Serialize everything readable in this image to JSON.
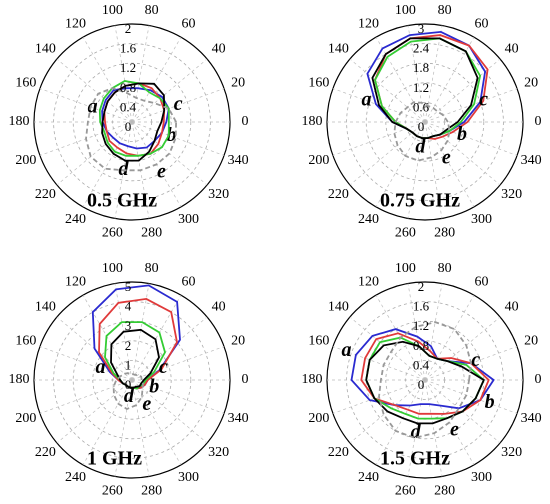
{
  "chart_data": [
    {
      "type": "polar",
      "title": "0.5 GHz",
      "theta": [
        0,
        20,
        40,
        60,
        80,
        100,
        120,
        140,
        160,
        180,
        200,
        220,
        240,
        260,
        280,
        300,
        320,
        340
      ],
      "xticks": [
        0,
        20,
        40,
        60,
        80,
        100,
        120,
        140,
        160,
        180,
        200,
        220,
        240,
        260,
        280,
        300,
        320,
        340
      ],
      "ylim": [
        0,
        2
      ],
      "yticks": [
        0,
        0.4,
        0.8,
        1.2,
        1.6,
        2
      ],
      "grid": true,
      "series": [
        {
          "name": "a",
          "color": "#2a2ad0",
          "values": [
            0.7,
            0.8,
            0.8,
            0.75,
            0.7,
            0.7,
            0.75,
            0.7,
            0.65,
            0.6,
            0.55,
            0.5,
            0.5,
            0.5,
            0.55,
            0.6,
            0.6,
            0.65
          ]
        },
        {
          "name": "b",
          "color": "#e03a3a",
          "values": [
            0.65,
            0.7,
            0.75,
            0.8,
            0.8,
            0.75,
            0.7,
            0.65,
            0.6,
            0.55,
            0.55,
            0.6,
            0.6,
            0.65,
            0.7,
            0.75,
            0.7,
            0.65
          ]
        },
        {
          "name": "c",
          "color": "#33cc33",
          "values": [
            0.75,
            0.8,
            0.75,
            0.7,
            0.8,
            0.85,
            0.8,
            0.75,
            0.7,
            0.65,
            0.6,
            0.65,
            0.7,
            0.7,
            0.7,
            0.75,
            0.8,
            0.8
          ]
        },
        {
          "name": "d",
          "color": "#000000",
          "values": [
            0.6,
            0.7,
            0.85,
            0.9,
            0.8,
            0.75,
            0.7,
            0.65,
            0.6,
            0.6,
            0.65,
            0.7,
            0.75,
            0.8,
            0.8,
            0.7,
            0.6,
            0.55
          ]
        },
        {
          "name": "e",
          "color": "#999999",
          "values": [
            0.9,
            0.8,
            0.6,
            0.5,
            0.5,
            0.6,
            0.8,
            0.9,
            0.9,
            0.9,
            1.0,
            1.1,
            1.1,
            1.0,
            1.0,
            1.0,
            1.0,
            0.95
          ]
        }
      ]
    },
    {
      "type": "polar",
      "title": "0.75 GHz",
      "theta": [
        0,
        20,
        40,
        60,
        80,
        100,
        120,
        140,
        160,
        180,
        200,
        220,
        240,
        260,
        280,
        300,
        320,
        340
      ],
      "xticks": [
        0,
        20,
        40,
        60,
        80,
        100,
        120,
        140,
        160,
        180,
        200,
        220,
        240,
        260,
        280,
        300,
        320,
        340
      ],
      "ylim": [
        0,
        3
      ],
      "yticks": [
        0,
        0.6,
        1.2,
        1.8,
        2.4,
        3
      ],
      "grid": true,
      "series": [
        {
          "name": "a",
          "color": "#2a2ad0",
          "values": [
            1.2,
            1.8,
            2.4,
            2.7,
            2.8,
            2.7,
            2.6,
            2.3,
            1.6,
            1.0,
            0.6,
            0.5,
            0.5,
            0.5,
            0.5,
            0.5,
            0.6,
            0.8
          ]
        },
        {
          "name": "b",
          "color": "#e03a3a",
          "values": [
            1.3,
            1.9,
            2.5,
            2.7,
            2.7,
            2.6,
            2.4,
            2.0,
            1.4,
            0.9,
            0.6,
            0.5,
            0.5,
            0.5,
            0.5,
            0.6,
            0.7,
            0.9
          ]
        },
        {
          "name": "c",
          "color": "#33cc33",
          "values": [
            1.1,
            1.6,
            2.2,
            2.5,
            2.6,
            2.5,
            2.3,
            2.0,
            1.4,
            0.9,
            0.6,
            0.5,
            0.5,
            0.5,
            0.5,
            0.5,
            0.6,
            0.8
          ]
        },
        {
          "name": "d",
          "color": "#000000",
          "values": [
            1.0,
            1.5,
            2.1,
            2.5,
            2.6,
            2.6,
            2.4,
            2.1,
            1.5,
            1.0,
            0.6,
            0.5,
            0.5,
            0.5,
            0.5,
            0.5,
            0.6,
            0.7
          ]
        },
        {
          "name": "e",
          "color": "#999999",
          "values": [
            0.7,
            0.6,
            0.5,
            0.5,
            0.5,
            0.6,
            0.7,
            0.7,
            0.8,
            0.9,
            1.0,
            1.1,
            1.2,
            1.2,
            1.1,
            1.0,
            0.9,
            0.8
          ]
        }
      ]
    },
    {
      "type": "polar",
      "title": "1 GHz",
      "theta": [
        0,
        20,
        40,
        60,
        80,
        100,
        120,
        140,
        160,
        180,
        200,
        220,
        240,
        260,
        280,
        300,
        320,
        340
      ],
      "xticks": [
        0,
        20,
        40,
        60,
        80,
        100,
        120,
        140,
        160,
        180,
        200,
        220,
        240,
        260,
        280,
        300,
        320,
        340
      ],
      "ylim": [
        0,
        5
      ],
      "yticks": [
        0,
        1,
        2,
        3,
        4,
        5
      ],
      "grid": true,
      "series": [
        {
          "name": "a",
          "color": "#2a2ad0",
          "values": [
            0.8,
            1.5,
            3.2,
            4.6,
            4.9,
            4.7,
            4.0,
            2.5,
            1.2,
            0.7,
            0.5,
            0.4,
            0.4,
            0.4,
            0.4,
            0.5,
            0.6,
            0.7
          ]
        },
        {
          "name": "b",
          "color": "#e03a3a",
          "values": [
            0.8,
            1.6,
            3.0,
            4.0,
            4.2,
            4.0,
            3.3,
            2.2,
            1.1,
            0.7,
            0.5,
            0.4,
            0.4,
            0.4,
            0.4,
            0.5,
            0.6,
            0.7
          ]
        },
        {
          "name": "c",
          "color": "#33cc33",
          "values": [
            0.7,
            1.2,
            2.2,
            2.8,
            3.0,
            3.0,
            2.6,
            1.8,
            1.0,
            0.6,
            0.5,
            0.4,
            0.4,
            0.4,
            0.4,
            0.5,
            0.5,
            0.6
          ]
        },
        {
          "name": "d",
          "color": "#000000",
          "values": [
            0.6,
            1.0,
            1.8,
            2.4,
            2.6,
            2.5,
            2.1,
            1.4,
            0.8,
            0.6,
            0.5,
            0.4,
            0.4,
            0.4,
            0.4,
            0.4,
            0.5,
            0.5
          ]
        },
        {
          "name": "e",
          "color": "#999999",
          "values": [
            0.5,
            0.5,
            0.4,
            0.3,
            0.3,
            0.3,
            0.4,
            0.5,
            0.6,
            0.8,
            1.0,
            1.2,
            1.4,
            1.5,
            1.3,
            1.0,
            0.7,
            0.6
          ]
        }
      ]
    },
    {
      "type": "polar",
      "title": "1.5 GHz",
      "theta": [
        0,
        20,
        40,
        60,
        80,
        100,
        120,
        140,
        160,
        180,
        200,
        220,
        240,
        260,
        280,
        300,
        320,
        340
      ],
      "xticks": [
        0,
        20,
        40,
        60,
        80,
        100,
        120,
        140,
        160,
        180,
        200,
        220,
        240,
        260,
        280,
        300,
        320,
        340
      ],
      "ylim": [
        0,
        2
      ],
      "yticks": [
        0,
        0.4,
        0.8,
        1.2,
        1.6,
        2
      ],
      "grid": true,
      "series": [
        {
          "name": "a",
          "color": "#2a2ad0",
          "values": [
            1.4,
            1.0,
            0.6,
            0.5,
            0.7,
            0.9,
            1.2,
            1.4,
            1.5,
            1.5,
            1.2,
            0.8,
            0.6,
            0.5,
            0.5,
            0.6,
            0.9,
            1.2
          ]
        },
        {
          "name": "b",
          "color": "#e03a3a",
          "values": [
            1.3,
            1.0,
            0.7,
            0.5,
            0.6,
            0.8,
            1.1,
            1.3,
            1.3,
            1.3,
            1.1,
            0.8,
            0.7,
            0.7,
            0.7,
            0.8,
            1.0,
            1.2
          ]
        },
        {
          "name": "c",
          "color": "#33cc33",
          "values": [
            1.2,
            0.9,
            0.6,
            0.5,
            0.5,
            0.7,
            1.0,
            1.2,
            1.2,
            1.2,
            1.1,
            0.9,
            0.8,
            0.8,
            0.8,
            0.9,
            1.0,
            1.1
          ]
        },
        {
          "name": "d",
          "color": "#000000",
          "values": [
            1.2,
            0.8,
            0.6,
            0.5,
            0.5,
            0.7,
            0.9,
            1.1,
            1.2,
            1.2,
            1.1,
            1.0,
            0.9,
            0.9,
            0.9,
            0.9,
            1.0,
            1.1
          ]
        },
        {
          "name": "e",
          "color": "#999999",
          "values": [
            0.9,
            1.0,
            1.1,
            1.2,
            1.2,
            1.1,
            1.0,
            0.9,
            0.9,
            0.9,
            1.0,
            1.1,
            1.2,
            1.2,
            1.1,
            1.0,
            0.9,
            0.9
          ]
        }
      ]
    }
  ]
}
